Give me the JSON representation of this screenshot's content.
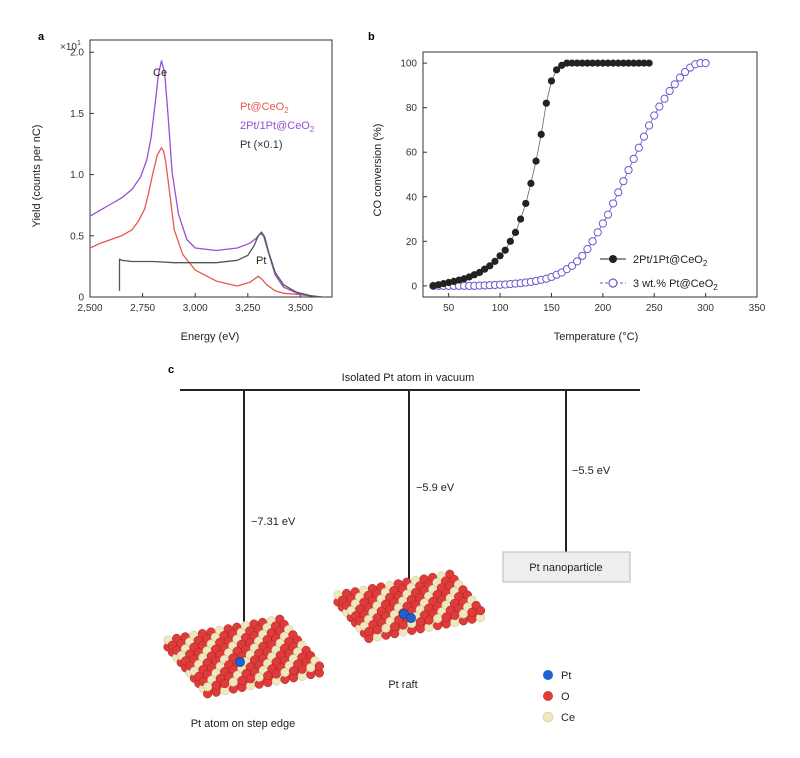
{
  "panels": {
    "a": "a",
    "b": "b",
    "c": "c"
  },
  "chart_data": [
    {
      "type": "line",
      "panel": "a",
      "xlabel": "Energy (eV)",
      "ylabel": "Yield (counts per nC)",
      "y_multiplier": "×10",
      "y_multiplier_exp": "1",
      "xlim": [
        2500,
        3650
      ],
      "ylim": [
        0,
        2.1
      ],
      "x_ticks": [
        2500,
        2750,
        3000,
        3250,
        3500
      ],
      "x_tick_labels": [
        "2,500",
        "2,750",
        "3,000",
        "3,250",
        "3,500"
      ],
      "y_ticks": [
        0,
        0.5,
        1.0,
        1.5,
        2.0
      ],
      "y_tick_labels": [
        "0",
        "0.5",
        "1.0",
        "1.5",
        "2.0"
      ],
      "annotations": [
        "Ce",
        "Pt"
      ],
      "series": [
        {
          "name": "Pt@CeO2",
          "legend_main": "Pt@CeO",
          "legend_sub": "2",
          "color": "#e8574f",
          "x": [
            2500,
            2550,
            2600,
            2650,
            2700,
            2730,
            2760,
            2780,
            2800,
            2820,
            2840,
            2850,
            2860,
            2880,
            2900,
            2940,
            3000,
            3100,
            3200,
            3260,
            3300,
            3320,
            3340,
            3380,
            3420,
            3500,
            3600
          ],
          "y": [
            0.4,
            0.44,
            0.47,
            0.5,
            0.55,
            0.62,
            0.72,
            0.86,
            1.02,
            1.16,
            1.22,
            1.19,
            1.1,
            0.83,
            0.55,
            0.35,
            0.22,
            0.13,
            0.09,
            0.12,
            0.17,
            0.14,
            0.1,
            0.05,
            0.03,
            0.02,
            0.0
          ]
        },
        {
          "name": "2Pt/1Pt@CeO2",
          "legend_main": "2Pt/1Pt@CeO",
          "legend_sub": "2",
          "color": "#9b4fd1",
          "x": [
            2500,
            2550,
            2600,
            2650,
            2700,
            2740,
            2770,
            2790,
            2810,
            2825,
            2840,
            2855,
            2870,
            2890,
            2920,
            2960,
            3000,
            3100,
            3200,
            3260,
            3290,
            3310,
            3325,
            3345,
            3380,
            3420,
            3500,
            3600
          ],
          "y": [
            0.66,
            0.71,
            0.76,
            0.81,
            0.88,
            0.98,
            1.12,
            1.3,
            1.58,
            1.82,
            1.93,
            1.83,
            1.5,
            1.02,
            0.68,
            0.47,
            0.4,
            0.38,
            0.4,
            0.44,
            0.48,
            0.52,
            0.5,
            0.38,
            0.18,
            0.08,
            0.02,
            0.0
          ]
        },
        {
          "name": "Pt (×0.1)",
          "color": "#555555",
          "x": [
            2640,
            2640,
            2650,
            2700,
            2800,
            2900,
            3000,
            3100,
            3200,
            3250,
            3280,
            3300,
            3315,
            3330,
            3350,
            3380,
            3420,
            3480,
            3550,
            3600
          ],
          "y": [
            0.05,
            0.31,
            0.3,
            0.29,
            0.29,
            0.28,
            0.28,
            0.28,
            0.3,
            0.34,
            0.42,
            0.5,
            0.53,
            0.49,
            0.36,
            0.2,
            0.1,
            0.04,
            0.01,
            0.0
          ]
        }
      ]
    },
    {
      "type": "scatter",
      "panel": "b",
      "xlabel": "Temperature (°C)",
      "ylabel": "CO conversion (%)",
      "xlim": [
        25,
        350
      ],
      "ylim": [
        -5,
        105
      ],
      "x_ticks": [
        50,
        100,
        150,
        200,
        250,
        300,
        350
      ],
      "x_tick_labels": [
        "50",
        "100",
        "150",
        "200",
        "250",
        "300",
        "350"
      ],
      "y_ticks": [
        0,
        20,
        40,
        60,
        80,
        100
      ],
      "y_tick_labels": [
        "0",
        "20",
        "40",
        "60",
        "80",
        "100"
      ],
      "series": [
        {
          "name": "2Pt/1Pt@CeO2",
          "legend_main": "2Pt/1Pt@CeO",
          "legend_sub": "2",
          "marker": "filled-circle",
          "color": "#222222",
          "x": [
            35,
            40,
            45,
            50,
            55,
            60,
            65,
            70,
            75,
            80,
            85,
            90,
            95,
            100,
            105,
            110,
            115,
            120,
            125,
            130,
            135,
            140,
            145,
            150,
            155,
            160,
            165,
            170,
            175,
            180,
            185,
            190,
            195,
            200,
            205,
            210,
            215,
            220,
            225,
            230,
            235,
            240,
            245
          ],
          "y": [
            0,
            0.5,
            1,
            1.5,
            2,
            2.6,
            3.2,
            4,
            5,
            6,
            7.5,
            9,
            11,
            13.5,
            16,
            20,
            24,
            30,
            37,
            46,
            56,
            68,
            82,
            92,
            97,
            99,
            100,
            100,
            100,
            100,
            100,
            100,
            100,
            100,
            100,
            100,
            100,
            100,
            100,
            100,
            100,
            100,
            100
          ]
        },
        {
          "name": "3 wt.% Pt@CeO2",
          "legend_main": "3 wt.% Pt@CeO",
          "legend_sub": "2",
          "marker": "open-circle",
          "color": "#6a5acd",
          "x": [
            35,
            40,
            45,
            50,
            55,
            60,
            65,
            70,
            75,
            80,
            85,
            90,
            95,
            100,
            105,
            110,
            115,
            120,
            125,
            130,
            135,
            140,
            145,
            150,
            155,
            160,
            165,
            170,
            175,
            180,
            185,
            190,
            195,
            200,
            205,
            210,
            215,
            220,
            225,
            230,
            235,
            240,
            245,
            250,
            255,
            260,
            265,
            270,
            275,
            280,
            285,
            290,
            295,
            300
          ],
          "y": [
            0,
            0,
            0,
            0,
            0,
            0,
            0,
            0,
            0,
            0.1,
            0.2,
            0.3,
            0.4,
            0.5,
            0.6,
            0.8,
            1.0,
            1.2,
            1.5,
            1.8,
            2.2,
            2.7,
            3.2,
            4,
            5,
            6,
            7.5,
            9,
            11,
            13.5,
            16.5,
            20,
            24,
            28,
            32,
            37,
            42,
            47,
            52,
            57,
            62,
            67,
            72,
            76.5,
            80.5,
            84,
            87.5,
            90.5,
            93.5,
            96,
            98,
            99.5,
            100,
            100
          ]
        }
      ]
    }
  ],
  "diagram": {
    "top_label": "Isolated Pt atom in vacuum",
    "lines": [
      {
        "energy_label": "−7.31 eV",
        "end_label": "Pt atom on step edge"
      },
      {
        "energy_label": "−5.9 eV",
        "end_label": "Pt raft"
      },
      {
        "energy_label": "−5.5 eV",
        "end_label": "Pt nanoparticle"
      }
    ],
    "legend": [
      {
        "label": "Pt",
        "color": "#1e5fd4"
      },
      {
        "label": "O",
        "color": "#e03b3b"
      },
      {
        "label": "Ce",
        "color": "#efe7bd"
      }
    ]
  }
}
